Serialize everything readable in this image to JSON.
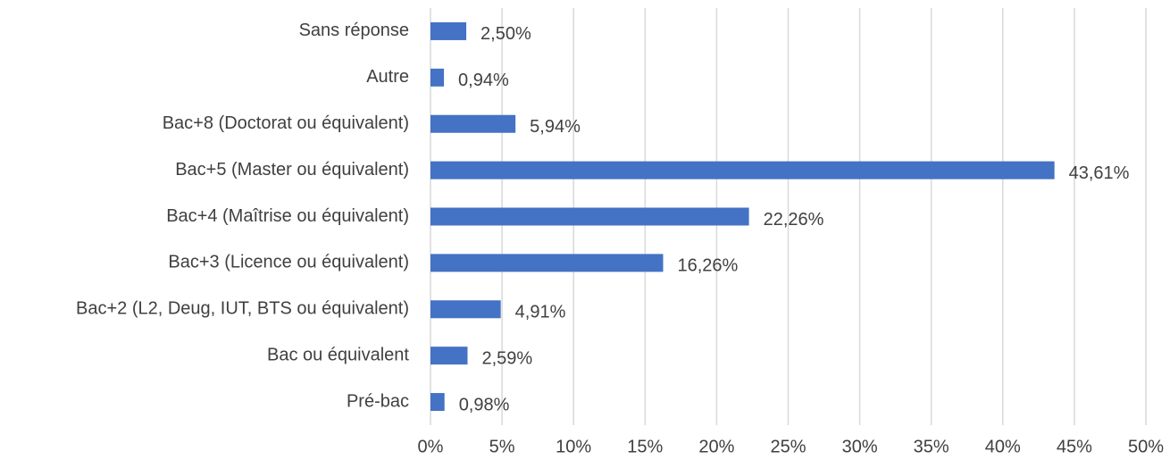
{
  "chart_data": {
    "type": "barh",
    "categories": [
      "Sans réponse",
      "Autre",
      "Bac+8 (Doctorat ou équivalent)",
      "Bac+5 (Master ou équivalent)",
      "Bac+4 (Maîtrise ou équivalent)",
      "Bac+3 (Licence ou équivalent)",
      "Bac+2 (L2, Deug, IUT, BTS ou équivalent)",
      "Bac ou équivalent",
      "Pré-bac"
    ],
    "values": [
      2.5,
      0.94,
      5.94,
      43.61,
      22.26,
      16.26,
      4.91,
      2.59,
      0.98
    ],
    "value_labels": [
      "2,50%",
      "0,94%",
      "5,94%",
      "43,61%",
      "22,26%",
      "16,26%",
      "4,91%",
      "2,59%",
      "0,98%"
    ],
    "color": "#4472c4",
    "xlim": [
      0,
      50
    ],
    "xticks": [
      {
        "value": 0,
        "label": "0%"
      },
      {
        "value": 5,
        "label": "5%"
      },
      {
        "value": 10,
        "label": "10%"
      },
      {
        "value": 15,
        "label": "15%"
      },
      {
        "value": 20,
        "label": "20%"
      },
      {
        "value": 25,
        "label": "25%"
      },
      {
        "value": 30,
        "label": "30%"
      },
      {
        "value": 35,
        "label": "35%"
      },
      {
        "value": 40,
        "label": "40%"
      },
      {
        "value": 45,
        "label": "45%"
      },
      {
        "value": 50,
        "label": "50%"
      }
    ],
    "grid": true
  }
}
